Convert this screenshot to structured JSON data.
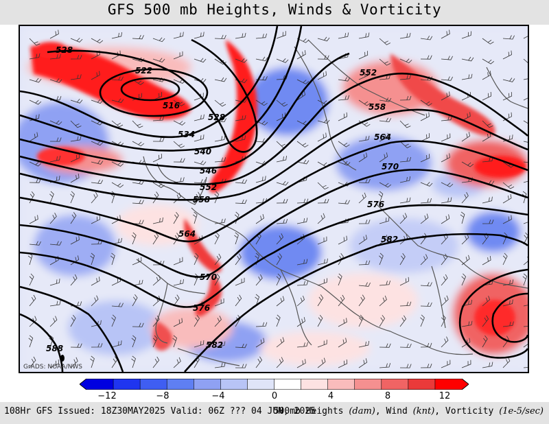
{
  "title": "GFS 500 mb Heights, Winds & Vorticity",
  "credit": "GrADS: NOAA/NWS",
  "footer": {
    "left": "108Hr GFS Issued: 18Z30MAY2025 Valid: 06Z ??? 04 JUN, 2025",
    "right_prefix": "500mb Heights ",
    "right_unit1": "(dam)",
    "right_mid1": ", Wind ",
    "right_unit2": "(knt)",
    "right_mid2": ", Vorticity ",
    "right_unit3": "(1e-5/sec)"
  },
  "colorbar": {
    "labels": [
      "−12",
      "−8",
      "−4",
      "0",
      "4",
      "8",
      "12"
    ],
    "colors": [
      "#0000e0",
      "#1f35f0",
      "#3f5ef2",
      "#5f7ff2",
      "#8fa1f3",
      "#b8c4f6",
      "#dfe4f8",
      "#ffffff",
      "#fde2e2",
      "#f9bcbc",
      "#f59090",
      "#f06464",
      "#ea3a3a",
      "#ff0000"
    ]
  },
  "contour_labels": {
    "h528a": "528",
    "h522": "522",
    "h516": "516",
    "h528b": "528",
    "h534": "534",
    "h540": "540",
    "h546": "546",
    "h552a": "552",
    "h552b": "552",
    "h558a": "558",
    "h558b": "558",
    "h564a": "564",
    "h564b": "564",
    "h570a": "570",
    "h570b": "570",
    "h576a": "576",
    "h576b": "576",
    "h582a": "582",
    "h582b": "582",
    "h588": "588"
  },
  "colors": {
    "positive_vorticity": "#ff0000",
    "negative_vorticity": "#3f5ef2",
    "background": "#dfe3f8"
  }
}
